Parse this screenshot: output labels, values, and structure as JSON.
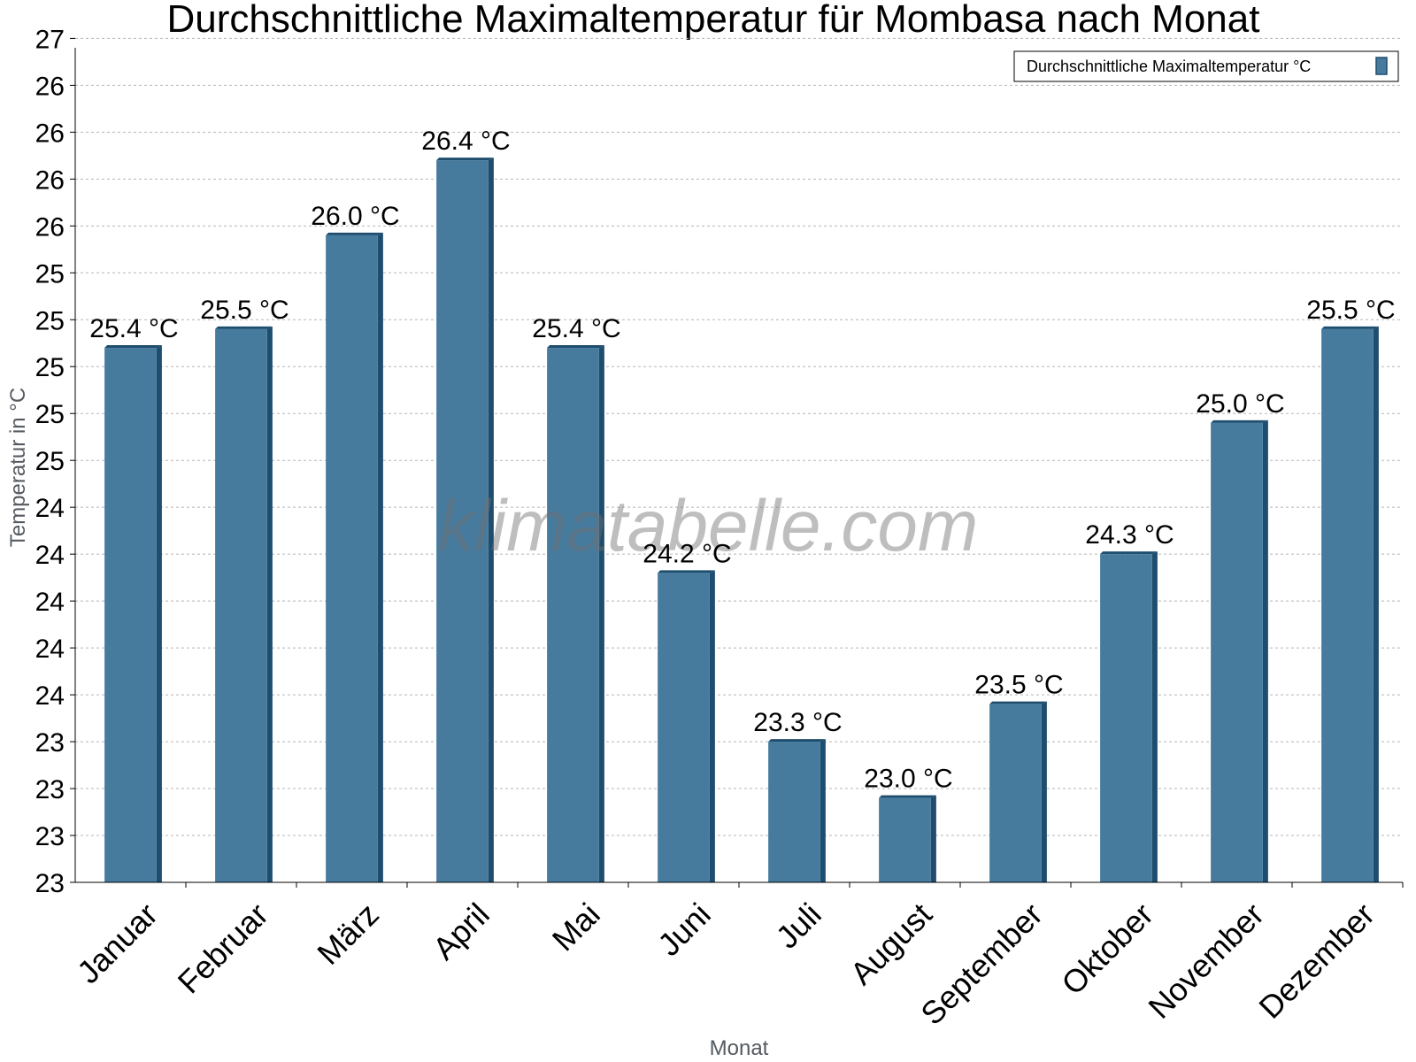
{
  "chart_data": {
    "type": "bar",
    "title": "Durchschnittliche Maximaltemperatur für Mombasa nach Monat",
    "xlabel": "Monat",
    "ylabel": "Temperatur in °C",
    "categories": [
      "Januar",
      "Februar",
      "März",
      "April",
      "Mai",
      "Juni",
      "Juli",
      "August",
      "September",
      "Oktober",
      "November",
      "Dezember"
    ],
    "series": [
      {
        "name": "Durchschnittliche Maximaltemperatur °C",
        "values": [
          25.4,
          25.5,
          26.0,
          26.4,
          25.4,
          24.2,
          23.3,
          23.0,
          23.5,
          24.3,
          25.0,
          25.5
        ],
        "labels": [
          "25.4 °C",
          "25.5 °C",
          "26.0 °C",
          "26.4 °C",
          "25.4 °C",
          "24.2 °C",
          "23.3 °C",
          "23.0 °C",
          "23.5 °C",
          "24.3 °C",
          "25.0 °C",
          "25.5 °C"
        ]
      }
    ],
    "ylim": [
      22.55,
      27.0
    ],
    "yticks": [
      22.55,
      22.8,
      23.05,
      23.3,
      23.55,
      23.8,
      24.05,
      24.3,
      24.55,
      24.8,
      25.05,
      25.3,
      25.55,
      25.8,
      26.05,
      26.3,
      26.55,
      26.8,
      27.05
    ],
    "ytick_labels": [
      "23",
      "23",
      "23",
      "23",
      "24",
      "24",
      "24",
      "24",
      "24",
      "25",
      "25",
      "25",
      "25",
      "25",
      "26",
      "26",
      "26",
      "26",
      "27"
    ],
    "grid": true,
    "legend_position": "top-right",
    "bar_color": "#467b9e",
    "bar_edge_color": "#1e4d6e",
    "watermark": "klimatabelle.com"
  }
}
